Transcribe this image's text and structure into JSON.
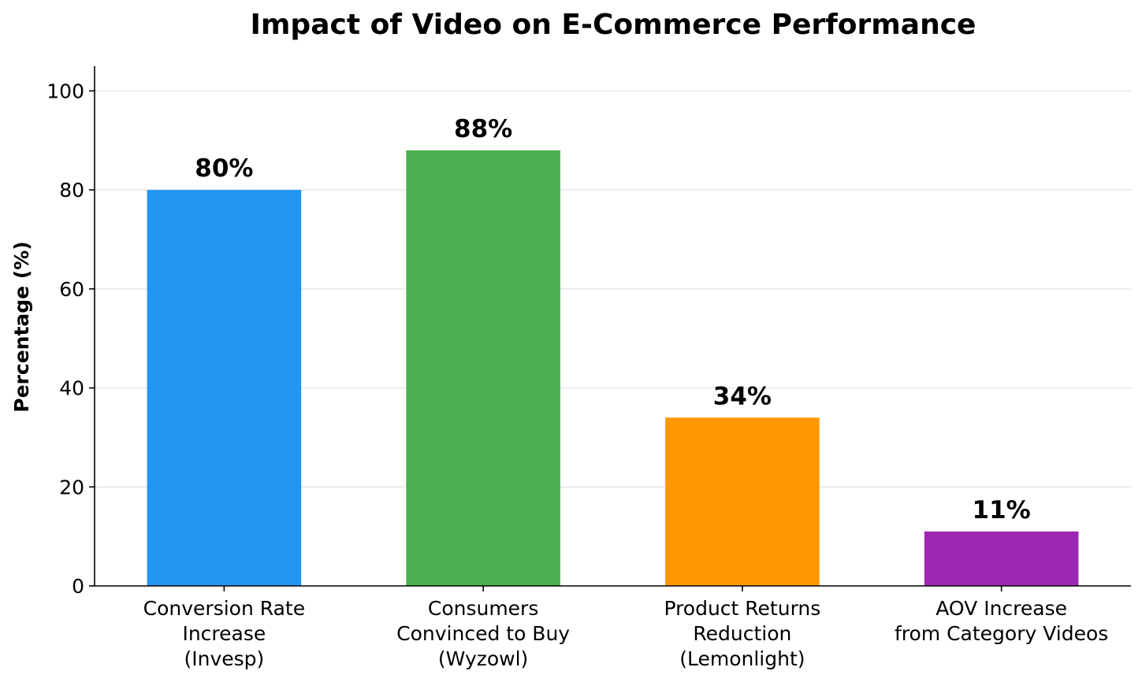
{
  "chart_data": {
    "type": "bar",
    "title": "Impact of Video on E-Commerce Performance",
    "xlabel": "",
    "ylabel": "Percentage (%)",
    "ylim": [
      0,
      105
    ],
    "yticks": [
      0,
      20,
      40,
      60,
      80,
      100
    ],
    "grid": "horizontal",
    "categories": [
      [
        "Conversion Rate",
        "Increase",
        "(Invesp)"
      ],
      [
        "Consumers",
        "Convinced to Buy",
        "(Wyzowl)"
      ],
      [
        "Product Returns",
        "Reduction",
        "(Lemonlight)"
      ],
      [
        "AOV Increase",
        "from Category Videos"
      ]
    ],
    "values": [
      80,
      88,
      34,
      11
    ],
    "value_labels": [
      "80%",
      "88%",
      "34%",
      "11%"
    ],
    "colors": [
      "#2196F3",
      "#4CAF50",
      "#FF9800",
      "#9C27B0"
    ]
  }
}
